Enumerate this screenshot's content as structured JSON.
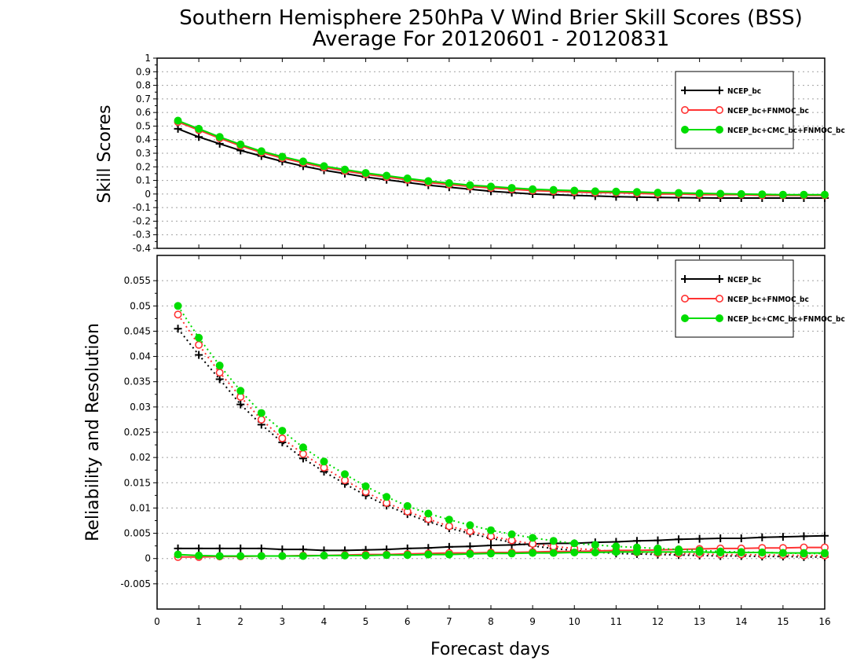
{
  "title_line1": "Southern Hemisphere 250hPa V Wind Brier Skill Scores (BSS)",
  "title_line2": "Average For 20120601 - 20120831",
  "colors": {
    "series1": "#000000",
    "series2": "#ff3333",
    "series3": "#00dd00",
    "grid": "#999999"
  },
  "chart_data": [
    {
      "type": "line",
      "ylabel": "Skill Scores",
      "xlabel": "",
      "xlim": [
        0,
        16
      ],
      "ylim": [
        -0.4,
        1
      ],
      "xticks": [
        "0",
        "1",
        "2",
        "3",
        "4",
        "5",
        "6",
        "7",
        "8",
        "9",
        "10",
        "11",
        "12",
        "13",
        "14",
        "15",
        "16"
      ],
      "yticks": [
        "-0.4",
        "-0.3",
        "-0.2",
        "-0.1",
        "0",
        "0.1",
        "0.2",
        "0.3",
        "0.4",
        "0.5",
        "0.6",
        "0.7",
        "0.8",
        "0.9",
        "1"
      ],
      "grid": true,
      "legend_position": "top-right",
      "x": [
        0.5,
        1,
        1.5,
        2,
        2.5,
        3,
        3.5,
        4,
        4.5,
        5,
        5.5,
        6,
        6.5,
        7,
        7.5,
        8,
        8.5,
        9,
        9.5,
        10,
        10.5,
        11,
        11.5,
        12,
        12.5,
        13,
        13.5,
        14,
        14.5,
        15,
        15.5,
        16
      ],
      "series": [
        {
          "name": "NCEP_bc",
          "color": "#000000",
          "marker": "plus",
          "values": [
            0.48,
            0.42,
            0.37,
            0.32,
            0.28,
            0.24,
            0.205,
            0.175,
            0.15,
            0.125,
            0.105,
            0.085,
            0.065,
            0.05,
            0.035,
            0.02,
            0.01,
            0.0,
            -0.005,
            -0.01,
            -0.015,
            -0.02,
            -0.022,
            -0.025,
            -0.027,
            -0.028,
            -0.03,
            -0.03,
            -0.03,
            -0.03,
            -0.03,
            -0.03
          ]
        },
        {
          "name": "NCEP_bc+FNMOC_bc",
          "color": "#ff3333",
          "marker": "open-circle",
          "values": [
            0.53,
            0.47,
            0.41,
            0.355,
            0.305,
            0.265,
            0.23,
            0.195,
            0.17,
            0.145,
            0.125,
            0.105,
            0.085,
            0.07,
            0.055,
            0.045,
            0.035,
            0.025,
            0.02,
            0.015,
            0.01,
            0.01,
            0.005,
            0.0,
            0.0,
            -0.005,
            -0.005,
            -0.005,
            -0.01,
            -0.01,
            -0.01,
            -0.01
          ]
        },
        {
          "name": "NCEP_bc+CMC_bc+FNMOC_bc",
          "color": "#00dd00",
          "marker": "filled-circle",
          "values": [
            0.54,
            0.48,
            0.42,
            0.365,
            0.315,
            0.275,
            0.24,
            0.205,
            0.18,
            0.155,
            0.135,
            0.115,
            0.095,
            0.08,
            0.065,
            0.055,
            0.045,
            0.035,
            0.03,
            0.025,
            0.02,
            0.018,
            0.015,
            0.01,
            0.008,
            0.005,
            0.002,
            0.0,
            -0.002,
            -0.005,
            -0.005,
            -0.005
          ]
        }
      ]
    },
    {
      "type": "line",
      "ylabel": "Reliability and Resolution",
      "xlabel": "Forecast days",
      "xlim": [
        0,
        16
      ],
      "ylim": [
        -0.01,
        0.06
      ],
      "xticks": [
        "0",
        "1",
        "2",
        "3",
        "4",
        "5",
        "6",
        "7",
        "8",
        "9",
        "10",
        "11",
        "12",
        "13",
        "14",
        "15",
        "16"
      ],
      "yticks": [
        "-0.005",
        "0",
        "0.005",
        "0.01",
        "0.015",
        "0.02",
        "0.025",
        "0.03",
        "0.035",
        "0.04",
        "0.045",
        "0.05",
        "0.055"
      ],
      "grid": true,
      "legend_position": "top-right",
      "x": [
        0.5,
        1,
        1.5,
        2,
        2.5,
        3,
        3.5,
        4,
        4.5,
        5,
        5.5,
        6,
        6.5,
        7,
        7.5,
        8,
        8.5,
        9,
        9.5,
        10,
        10.5,
        11,
        11.5,
        12,
        12.5,
        13,
        13.5,
        14,
        14.5,
        15,
        15.5,
        16
      ],
      "series": [
        {
          "name": "NCEP_bc",
          "color": "#000000",
          "marker": "plus",
          "reliability": [
            0.0455,
            0.0403,
            0.0355,
            0.0305,
            0.0265,
            0.023,
            0.0198,
            0.0172,
            0.0148,
            0.0125,
            0.0105,
            0.0088,
            0.0073,
            0.006,
            0.005,
            0.004,
            0.0032,
            0.0025,
            0.002,
            0.0016,
            0.0013,
            0.001,
            0.0009,
            0.0008,
            0.0007,
            0.0006,
            0.0005,
            0.0005,
            0.0004,
            0.0004,
            0.0003,
            0.0003
          ],
          "resolution": [
            0.002,
            0.002,
            0.002,
            0.002,
            0.002,
            0.0018,
            0.0018,
            0.0016,
            0.0016,
            0.0017,
            0.0018,
            0.002,
            0.0021,
            0.0023,
            0.0024,
            0.0026,
            0.0027,
            0.0029,
            0.003,
            0.003,
            0.0032,
            0.0033,
            0.0035,
            0.0036,
            0.0038,
            0.0039,
            0.004,
            0.004,
            0.0042,
            0.0043,
            0.0044,
            0.0045
          ]
        },
        {
          "name": "NCEP_bc+FNMOC_bc",
          "color": "#ff3333",
          "marker": "open-circle",
          "reliability": [
            0.0483,
            0.0423,
            0.0368,
            0.032,
            0.0275,
            0.0238,
            0.0207,
            0.018,
            0.0155,
            0.0132,
            0.011,
            0.0093,
            0.0078,
            0.0064,
            0.0054,
            0.0044,
            0.0036,
            0.0029,
            0.0024,
            0.002,
            0.0017,
            0.0014,
            0.0012,
            0.0011,
            0.001,
            0.0009,
            0.0008,
            0.0008,
            0.0007,
            0.0007,
            0.0006,
            0.0006
          ],
          "resolution": [
            0.0003,
            0.0003,
            0.0004,
            0.0004,
            0.0005,
            0.0005,
            0.0006,
            0.0006,
            0.0007,
            0.0008,
            0.0008,
            0.0009,
            0.001,
            0.0011,
            0.0011,
            0.0012,
            0.0012,
            0.0013,
            0.0014,
            0.0014,
            0.0015,
            0.0016,
            0.0016,
            0.0017,
            0.0018,
            0.0019,
            0.002,
            0.002,
            0.0021,
            0.0021,
            0.0022,
            0.0022
          ]
        },
        {
          "name": "NCEP_bc+CMC_bc+FNMOC_bc",
          "color": "#00dd00",
          "marker": "filled-circle",
          "reliability": [
            0.05,
            0.0437,
            0.0382,
            0.0332,
            0.0288,
            0.0253,
            0.022,
            0.0192,
            0.0167,
            0.0143,
            0.0122,
            0.0104,
            0.0089,
            0.0077,
            0.0066,
            0.0056,
            0.0048,
            0.0041,
            0.0035,
            0.003,
            0.0027,
            0.0024,
            0.0022,
            0.002,
            0.0018,
            0.0016,
            0.0014,
            0.0013,
            0.0012,
            0.0011,
            0.001,
            0.001
          ],
          "resolution": [
            0.0008,
            0.0006,
            0.0005,
            0.0005,
            0.0005,
            0.0005,
            0.0005,
            0.0006,
            0.0006,
            0.0006,
            0.0007,
            0.0007,
            0.0008,
            0.0008,
            0.0009,
            0.001,
            0.001,
            0.0011,
            0.0011,
            0.0012,
            0.0012,
            0.0013,
            0.0013,
            0.0013,
            0.0013,
            0.0013,
            0.0012,
            0.0012,
            0.0012,
            0.0011,
            0.0011,
            0.0011
          ]
        }
      ]
    }
  ]
}
